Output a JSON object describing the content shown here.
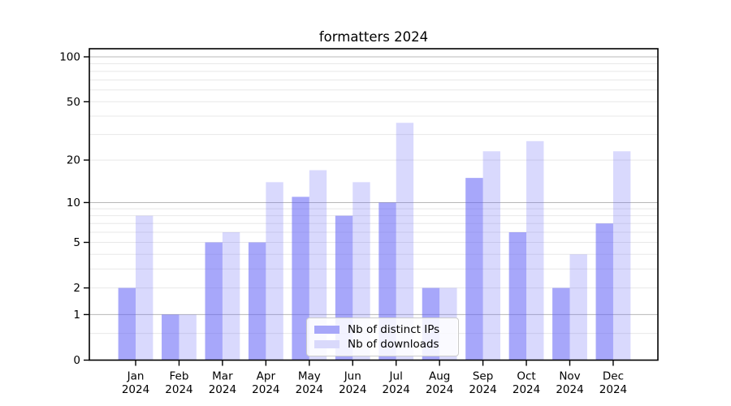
{
  "title": "formatters 2024",
  "chart_data": {
    "type": "bar",
    "title": "formatters 2024",
    "y_scale": "log1p",
    "grid": true,
    "legend_position": "lower center",
    "categories": [
      "Jan 2024",
      "Feb 2024",
      "Mar 2024",
      "Apr 2024",
      "May 2024",
      "Jun 2024",
      "Jul 2024",
      "Aug 2024",
      "Sep 2024",
      "Oct 2024",
      "Nov 2024",
      "Dec 2024"
    ],
    "series": [
      {
        "name": "Nb of distinct IPs",
        "color": "#a7a7f9",
        "fill": "rgba(95,95,245,0.55)",
        "values": [
          2,
          1,
          5,
          5,
          11,
          8,
          10,
          2,
          15,
          6,
          2,
          7
        ]
      },
      {
        "name": "Nb of downloads",
        "color": "#d9d9fb",
        "fill": "rgba(95,95,245,0.24)",
        "values": [
          8,
          1,
          6,
          14,
          17,
          14,
          36,
          2,
          23,
          27,
          4,
          23
        ]
      }
    ],
    "y_tick_values": [
      0,
      1,
      2,
      5,
      10,
      20,
      50,
      100
    ],
    "major_gridlines": [
      1,
      10,
      100
    ],
    "minor_gridlines": [
      0.5,
      2,
      3,
      4,
      5,
      6,
      7,
      8,
      9,
      20,
      30,
      40,
      50,
      60,
      70,
      80,
      90
    ],
    "ylim": [
      0,
      113
    ],
    "colors": {
      "major_grid": "#b8b8b8",
      "minor_grid": "#e8e8e8",
      "spine": "#000000",
      "text": "#000000"
    }
  }
}
